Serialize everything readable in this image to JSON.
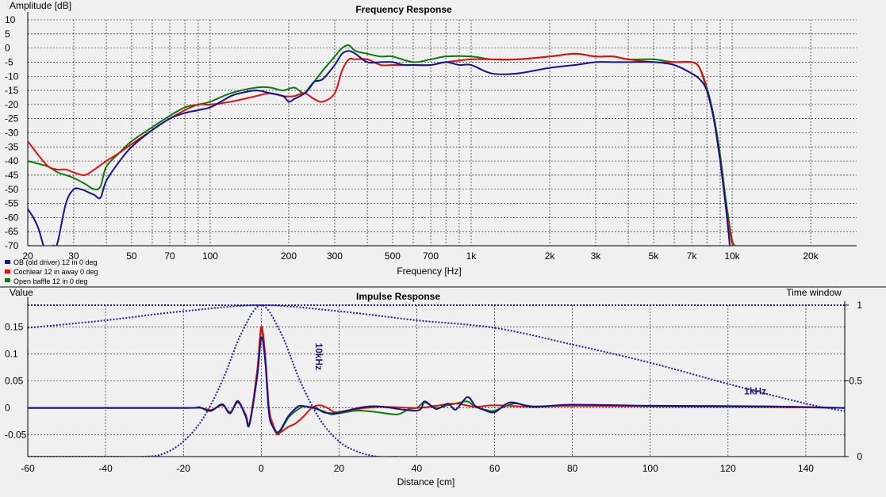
{
  "colors": {
    "series_1": "#14148c",
    "series_2": "#e01010",
    "series_3": "#0a7a0a",
    "window": "#1c1c9a",
    "grid": "#000000",
    "background": "#f0f0f0"
  },
  "chart_data": [
    {
      "type": "line",
      "title": "Frequency Response",
      "xlabel": "Frequency [Hz]",
      "ylabel": "Amplitude [dB]",
      "xscale": "log",
      "xlim": [
        20,
        30000
      ],
      "ylim": [
        -70,
        10
      ],
      "grid": true,
      "legend": "bottom-left",
      "x_ticks": [
        {
          "v": 20,
          "label": "20"
        },
        {
          "v": 30,
          "label": "30"
        },
        {
          "v": 50,
          "label": "50"
        },
        {
          "v": 70,
          "label": "70"
        },
        {
          "v": 100,
          "label": "100"
        },
        {
          "v": 200,
          "label": "200"
        },
        {
          "v": 300,
          "label": "300"
        },
        {
          "v": 500,
          "label": "500"
        },
        {
          "v": 700,
          "label": "700"
        },
        {
          "v": 1000,
          "label": "1k"
        },
        {
          "v": 2000,
          "label": "2k"
        },
        {
          "v": 3000,
          "label": "3k"
        },
        {
          "v": 5000,
          "label": "5k"
        },
        {
          "v": 7000,
          "label": "7k"
        },
        {
          "v": 10000,
          "label": "10k"
        },
        {
          "v": 20000,
          "label": "20k"
        }
      ],
      "y_ticks": [
        10,
        5,
        0,
        -5,
        -10,
        -15,
        -20,
        -25,
        -30,
        -35,
        -40,
        -45,
        -50,
        -55,
        -60,
        -65,
        -70
      ],
      "series": [
        {
          "name": "OB (old driver) 12 in 0 deg",
          "x": [
            20,
            21,
            22,
            23,
            24,
            25,
            26,
            28,
            30,
            32,
            34,
            36,
            38,
            40,
            45,
            50,
            60,
            70,
            80,
            90,
            100,
            110,
            120,
            130,
            150,
            170,
            190,
            200,
            210,
            230,
            250,
            270,
            300,
            320,
            340,
            360,
            400,
            450,
            500,
            550,
            600,
            700,
            800,
            900,
            1000,
            1200,
            1500,
            2000,
            2500,
            3000,
            3500,
            4000,
            5000,
            6000,
            7000,
            7500,
            8000,
            8500,
            9000,
            9500,
            9800
          ],
          "y": [
            -57,
            -60,
            -64,
            -70,
            -72,
            -70,
            -69,
            -55,
            -50,
            -50,
            -51,
            -52,
            -53,
            -47,
            -40,
            -35,
            -29,
            -25,
            -23,
            -22,
            -21,
            -19,
            -17,
            -16,
            -15,
            -16,
            -17,
            -19,
            -18,
            -16,
            -12,
            -11,
            -6,
            -2,
            -1,
            -2,
            -5,
            -5,
            -5,
            -6,
            -6,
            -6,
            -5,
            -6,
            -6,
            -9,
            -9,
            -7,
            -6,
            -5,
            -5,
            -5,
            -5,
            -6,
            -9,
            -11,
            -15,
            -25,
            -40,
            -58,
            -70
          ]
        },
        {
          "name": "Cochlear 12 in away 0 deg",
          "x": [
            20,
            22,
            24,
            26,
            28,
            30,
            33,
            36,
            40,
            45,
            50,
            60,
            70,
            80,
            90,
            100,
            120,
            150,
            170,
            190,
            210,
            230,
            250,
            270,
            300,
            320,
            340,
            360,
            400,
            450,
            500,
            600,
            700,
            800,
            1000,
            1200,
            1500,
            2000,
            2500,
            3000,
            3500,
            4000,
            5000,
            6000,
            7000,
            7500,
            8000,
            8500,
            9000,
            9500,
            10000,
            10500
          ],
          "y": [
            -33,
            -38,
            -42,
            -43,
            -43,
            -44,
            -45,
            -43,
            -40,
            -37,
            -34,
            -29,
            -25,
            -22,
            -20,
            -20,
            -19,
            -17,
            -16,
            -17,
            -17,
            -16,
            -18,
            -19,
            -16,
            -8,
            -4,
            -4,
            -4,
            -6,
            -6,
            -6,
            -6,
            -5,
            -4,
            -4,
            -4,
            -3,
            -2,
            -3,
            -3,
            -4,
            -5,
            -5,
            -5,
            -7,
            -15,
            -25,
            -40,
            -57,
            -69,
            -70
          ]
        },
        {
          "name": "Open baffle 12 in 0 deg",
          "x": [
            20,
            22,
            24,
            26,
            28,
            30,
            33,
            36,
            38,
            40,
            45,
            50,
            60,
            70,
            80,
            90,
            100,
            120,
            150,
            170,
            190,
            210,
            230,
            250,
            270,
            300,
            320,
            340,
            360,
            400,
            450,
            500,
            600,
            700,
            800,
            1000,
            1200,
            1500,
            2000,
            2500,
            3000,
            3500,
            4000,
            5000,
            6000,
            7000,
            7500,
            8000,
            8500,
            9000,
            9500,
            10000,
            10300
          ],
          "y": [
            -40,
            -41,
            -42,
            -44,
            -45,
            -46,
            -48,
            -50,
            -49,
            -42,
            -37,
            -33,
            -28,
            -24,
            -21,
            -20,
            -19,
            -16,
            -14,
            -14,
            -15,
            -14,
            -16,
            -12,
            -8,
            -3,
            0,
            1,
            -1,
            -2,
            -3,
            -3,
            -5,
            -4,
            -3,
            -3,
            -4,
            -4,
            -3,
            -2,
            -3,
            -3,
            -4,
            -4,
            -5,
            -5,
            -7,
            -14,
            -24,
            -38,
            -55,
            -68,
            -70
          ]
        }
      ]
    },
    {
      "type": "line",
      "title": "Impulse Response",
      "xlabel": "Distance [cm]",
      "ylabel": "Value",
      "y2label": "Time window",
      "xlim": [
        -60,
        150
      ],
      "ylim": [
        -0.09,
        0.19
      ],
      "y2lim": [
        0,
        1
      ],
      "grid": true,
      "x_ticks": [
        -60,
        -40,
        -20,
        0,
        20,
        40,
        60,
        80,
        100,
        120,
        140
      ],
      "y_ticks": [
        {
          "v": 0.15,
          "label": "0.15"
        },
        {
          "v": 0.1,
          "label": "0.1"
        },
        {
          "v": 0.05,
          "label": "0.05"
        },
        {
          "v": 0,
          "label": "0"
        },
        {
          "v": -0.05,
          "label": "-0.05"
        }
      ],
      "y2_ticks": [
        {
          "v": 1,
          "label": "1"
        },
        {
          "v": 0.5,
          "label": "0.5"
        },
        {
          "v": 0,
          "label": "0"
        }
      ],
      "series": [
        {
          "name": "OB (old driver) 12 in 0 deg",
          "x": [
            -60,
            -20,
            -16,
            -13,
            -10,
            -8,
            -6,
            -4,
            -3,
            -1,
            0,
            1,
            2,
            3,
            4,
            5,
            7,
            9,
            10,
            12,
            14,
            16,
            18,
            20,
            25,
            30,
            40,
            42,
            45,
            48,
            50,
            53,
            55,
            57,
            60,
            64,
            70,
            80,
            100,
            130,
            150
          ],
          "y": [
            0,
            0,
            0.001,
            -0.005,
            0.006,
            -0.01,
            0.012,
            -0.015,
            -0.03,
            0.06,
            0.13,
            0.09,
            -0.01,
            -0.035,
            -0.045,
            -0.04,
            -0.015,
            0.0,
            0.004,
            0.002,
            0.0,
            -0.008,
            -0.01,
            -0.009,
            0,
            0.003,
            -0.005,
            0.012,
            -0.002,
            0.008,
            -0.003,
            0.02,
            0.004,
            -0.003,
            -0.008,
            0.01,
            0.002,
            0.006,
            0.004,
            0.003,
            0
          ]
        },
        {
          "name": "Cochlear 12 in away 0 deg",
          "x": [
            -60,
            -20,
            -16,
            -13,
            -10,
            -8,
            -6,
            -4,
            -3,
            -1,
            0,
            1,
            2,
            3,
            4,
            5,
            7,
            9,
            11,
            13,
            15,
            17,
            19,
            22,
            30,
            40,
            45,
            50,
            55,
            60,
            70,
            80,
            100,
            130,
            150
          ],
          "y": [
            0,
            0,
            0.001,
            -0.004,
            0.005,
            -0.008,
            0.01,
            -0.012,
            -0.028,
            0.07,
            0.15,
            0.1,
            0.0,
            -0.03,
            -0.048,
            -0.045,
            -0.035,
            -0.028,
            -0.015,
            0.0,
            0.005,
            0.0,
            -0.008,
            -0.005,
            0.002,
            0.0,
            0.004,
            0.008,
            0.002,
            0.005,
            0.002,
            0.004,
            0.003,
            0.002,
            0
          ]
        },
        {
          "name": "Open baffle 12 in 0 deg",
          "x": [
            -60,
            -20,
            -16,
            -13,
            -10,
            -8,
            -6,
            -4,
            -3,
            -1,
            0,
            1,
            2,
            3,
            4,
            5,
            7,
            9,
            11,
            13,
            16,
            18,
            20,
            25,
            30,
            35,
            38,
            40,
            42,
            45,
            48,
            50,
            53,
            55,
            58,
            60,
            65,
            70,
            80,
            100,
            130,
            150
          ],
          "y": [
            0,
            0,
            0.001,
            -0.006,
            0.007,
            -0.01,
            0.013,
            -0.016,
            -0.03,
            0.07,
            0.145,
            0.09,
            -0.005,
            -0.03,
            -0.045,
            -0.042,
            -0.018,
            -0.005,
            0.003,
            0.0,
            -0.006,
            -0.012,
            -0.01,
            -0.005,
            -0.008,
            -0.012,
            -0.002,
            0.0,
            0.01,
            0.0,
            0.005,
            0.008,
            0.012,
            0.002,
            -0.004,
            -0.005,
            0.008,
            0.003,
            0.005,
            0.003,
            0.002,
            0
          ]
        },
        {
          "name": "10kHz",
          "axis": "y2",
          "x": [
            -60,
            -40,
            -30,
            -25,
            -20,
            -15,
            -10,
            -5,
            0,
            5,
            10,
            15,
            20,
            25,
            30,
            35
          ],
          "y": [
            0,
            0,
            0,
            0.02,
            0.1,
            0.25,
            0.5,
            0.82,
            1,
            0.82,
            0.5,
            0.25,
            0.1,
            0.03,
            0,
            0
          ]
        },
        {
          "name": "1kHz",
          "axis": "y2",
          "x": [
            -60,
            -40,
            -20,
            0,
            20,
            40,
            60,
            80,
            100,
            120,
            140,
            150
          ],
          "y": [
            0.85,
            0.9,
            0.96,
            1,
            0.96,
            0.9,
            0.85,
            0.74,
            0.62,
            0.48,
            0.35,
            0.3
          ]
        }
      ],
      "annotations": [
        {
          "text": "10kHz",
          "x": 14,
          "y": 0.095
        },
        {
          "text": "1kHz",
          "x": 127,
          "y": 0.025
        }
      ],
      "window_line_label_value": 1
    }
  ]
}
